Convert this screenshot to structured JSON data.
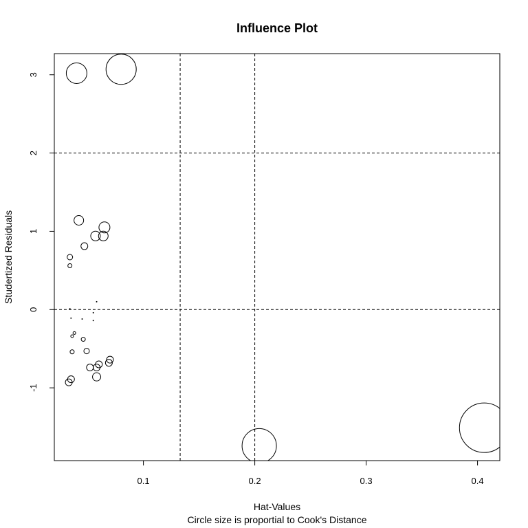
{
  "chart_data": {
    "type": "scatter",
    "title": "Influence Plot",
    "xlabel": "Hat-Values",
    "subtitle": "Circle size is proportial to Cook's Distance",
    "ylabel": "Studertized Residuals",
    "xlim": [
      0.02,
      0.42
    ],
    "ylim": [
      -1.93,
      3.27
    ],
    "x_ticks": [
      0.1,
      0.2,
      0.3,
      0.4
    ],
    "x_tick_labels": [
      "0.1",
      "0.2",
      "0.3",
      "0.4"
    ],
    "y_ticks": [
      -1,
      0,
      1,
      2,
      3
    ],
    "y_tick_labels": [
      "-1",
      "0",
      "1",
      "2",
      "3"
    ],
    "reference_lines": {
      "vertical": [
        0.133,
        0.2
      ],
      "horizontal": [
        2,
        0
      ]
    },
    "grid": false,
    "series": [
      {
        "points": [
          {
            "x": 0.04,
            "y": 3.02,
            "r": 15
          },
          {
            "x": 0.08,
            "y": 3.07,
            "r": 22
          },
          {
            "x": 0.042,
            "y": 1.14,
            "r": 7
          },
          {
            "x": 0.065,
            "y": 1.05,
            "r": 8
          },
          {
            "x": 0.057,
            "y": 0.94,
            "r": 7
          },
          {
            "x": 0.064,
            "y": 0.94,
            "r": 7
          },
          {
            "x": 0.047,
            "y": 0.81,
            "r": 5
          },
          {
            "x": 0.034,
            "y": 0.67,
            "r": 4
          },
          {
            "x": 0.034,
            "y": 0.56,
            "r": 3
          },
          {
            "x": 0.058,
            "y": 0.1,
            "r": 0.8
          },
          {
            "x": 0.034,
            "y": 0.01,
            "r": 0.6
          },
          {
            "x": 0.055,
            "y": -0.04,
            "r": 0.6
          },
          {
            "x": 0.035,
            "y": -0.11,
            "r": 0.8
          },
          {
            "x": 0.045,
            "y": -0.12,
            "r": 0.8
          },
          {
            "x": 0.055,
            "y": -0.14,
            "r": 1
          },
          {
            "x": 0.038,
            "y": -0.3,
            "r": 2
          },
          {
            "x": 0.036,
            "y": -0.34,
            "r": 2
          },
          {
            "x": 0.046,
            "y": -0.38,
            "r": 3
          },
          {
            "x": 0.036,
            "y": -0.54,
            "r": 3
          },
          {
            "x": 0.049,
            "y": -0.53,
            "r": 4
          },
          {
            "x": 0.07,
            "y": -0.64,
            "r": 5
          },
          {
            "x": 0.06,
            "y": -0.7,
            "r": 5
          },
          {
            "x": 0.069,
            "y": -0.68,
            "r": 5
          },
          {
            "x": 0.052,
            "y": -0.74,
            "r": 5
          },
          {
            "x": 0.058,
            "y": -0.74,
            "r": 5
          },
          {
            "x": 0.058,
            "y": -0.86,
            "r": 6
          },
          {
            "x": 0.035,
            "y": -0.89,
            "r": 5
          },
          {
            "x": 0.033,
            "y": -0.93,
            "r": 5
          },
          {
            "x": 0.204,
            "y": -1.74,
            "r": 25
          },
          {
            "x": 0.406,
            "y": -1.51,
            "r": 36
          }
        ]
      }
    ]
  },
  "colors": {
    "background": "#ffffff",
    "foreground": "#000000"
  }
}
